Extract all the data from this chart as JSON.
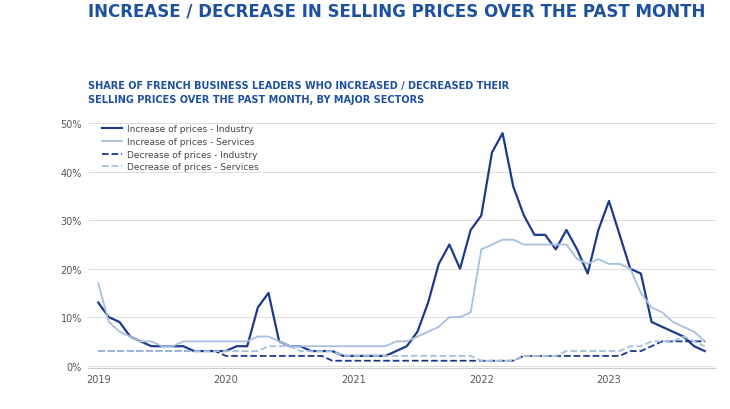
{
  "title": "INCREASE / DECREASE IN SELLING PRICES OVER THE PAST MONTH",
  "subtitle": "SHARE OF FRENCH BUSINESS LEADERS WHO INCREASED / DECREASED THEIR\nSELLING PRICES OVER THE PAST MONTH, BY MAJOR SECTORS",
  "background_color": "#ffffff",
  "plot_bg_color": "#ffffff",
  "title_color": "#1e50a0",
  "subtitle_color": "#1e50a0",
  "series": {
    "increase_industry": {
      "label": "Increase of prices - Industry",
      "color": "#1a3a8c",
      "linestyle": "-",
      "linewidth": 1.6,
      "values": [
        13,
        10,
        9,
        6,
        5,
        4,
        4,
        4,
        4,
        3,
        3,
        3,
        3,
        4,
        4,
        12,
        15,
        5,
        4,
        4,
        3,
        3,
        3,
        2,
        2,
        2,
        2,
        2,
        3,
        4,
        7,
        13,
        21,
        25,
        20,
        28,
        31,
        44,
        48,
        37,
        31,
        27,
        27,
        24,
        28,
        24,
        19,
        28,
        34,
        27,
        20,
        19,
        9,
        8,
        7,
        6,
        4,
        3
      ]
    },
    "increase_services": {
      "label": "Increase of prices - Services",
      "color": "#a8bfdf",
      "linestyle": "-",
      "linewidth": 1.3,
      "values": [
        17,
        9,
        7,
        6,
        5,
        5,
        4,
        4,
        5,
        5,
        5,
        5,
        5,
        5,
        5,
        6,
        6,
        5,
        4,
        4,
        4,
        4,
        4,
        4,
        4,
        4,
        4,
        4,
        5,
        5,
        6,
        7,
        8,
        10,
        10,
        11,
        24,
        25,
        26,
        26,
        25,
        25,
        25,
        25,
        25,
        22,
        21,
        22,
        21,
        21,
        20,
        15,
        12,
        11,
        9,
        8,
        7,
        5
      ]
    },
    "decrease_industry": {
      "label": "Decrease of prices - Industry",
      "color": "#1a3a8c",
      "linestyle": "--",
      "linewidth": 1.3,
      "values": [
        3,
        3,
        3,
        3,
        3,
        3,
        3,
        3,
        3,
        3,
        3,
        3,
        2,
        2,
        2,
        2,
        2,
        2,
        2,
        2,
        2,
        2,
        1,
        1,
        1,
        1,
        1,
        1,
        1,
        1,
        1,
        1,
        1,
        1,
        1,
        1,
        1,
        1,
        1,
        1,
        2,
        2,
        2,
        2,
        2,
        2,
        2,
        2,
        2,
        2,
        3,
        3,
        4,
        5,
        5,
        5,
        5,
        5
      ]
    },
    "decrease_services": {
      "label": "Decrease of prices - Services",
      "color": "#a8bfdf",
      "linestyle": "--",
      "linewidth": 1.3,
      "values": [
        3,
        3,
        3,
        3,
        3,
        3,
        3,
        3,
        3,
        3,
        3,
        3,
        3,
        3,
        3,
        3,
        4,
        4,
        4,
        3,
        3,
        3,
        3,
        2,
        2,
        2,
        2,
        2,
        2,
        2,
        2,
        2,
        2,
        2,
        2,
        2,
        1,
        1,
        1,
        1,
        2,
        2,
        2,
        2,
        3,
        3,
        3,
        3,
        3,
        3,
        4,
        4,
        5,
        5,
        5,
        6,
        5,
        4
      ]
    }
  },
  "n_points": 58,
  "yticks": [
    0,
    10,
    20,
    30,
    40,
    50
  ],
  "ylim": [
    -0.5,
    52
  ],
  "grid_color": "#d0d0d0",
  "legend_fontsize": 6.5,
  "axis_fontsize": 7,
  "title_fontsize": 12,
  "subtitle_fontsize": 7
}
